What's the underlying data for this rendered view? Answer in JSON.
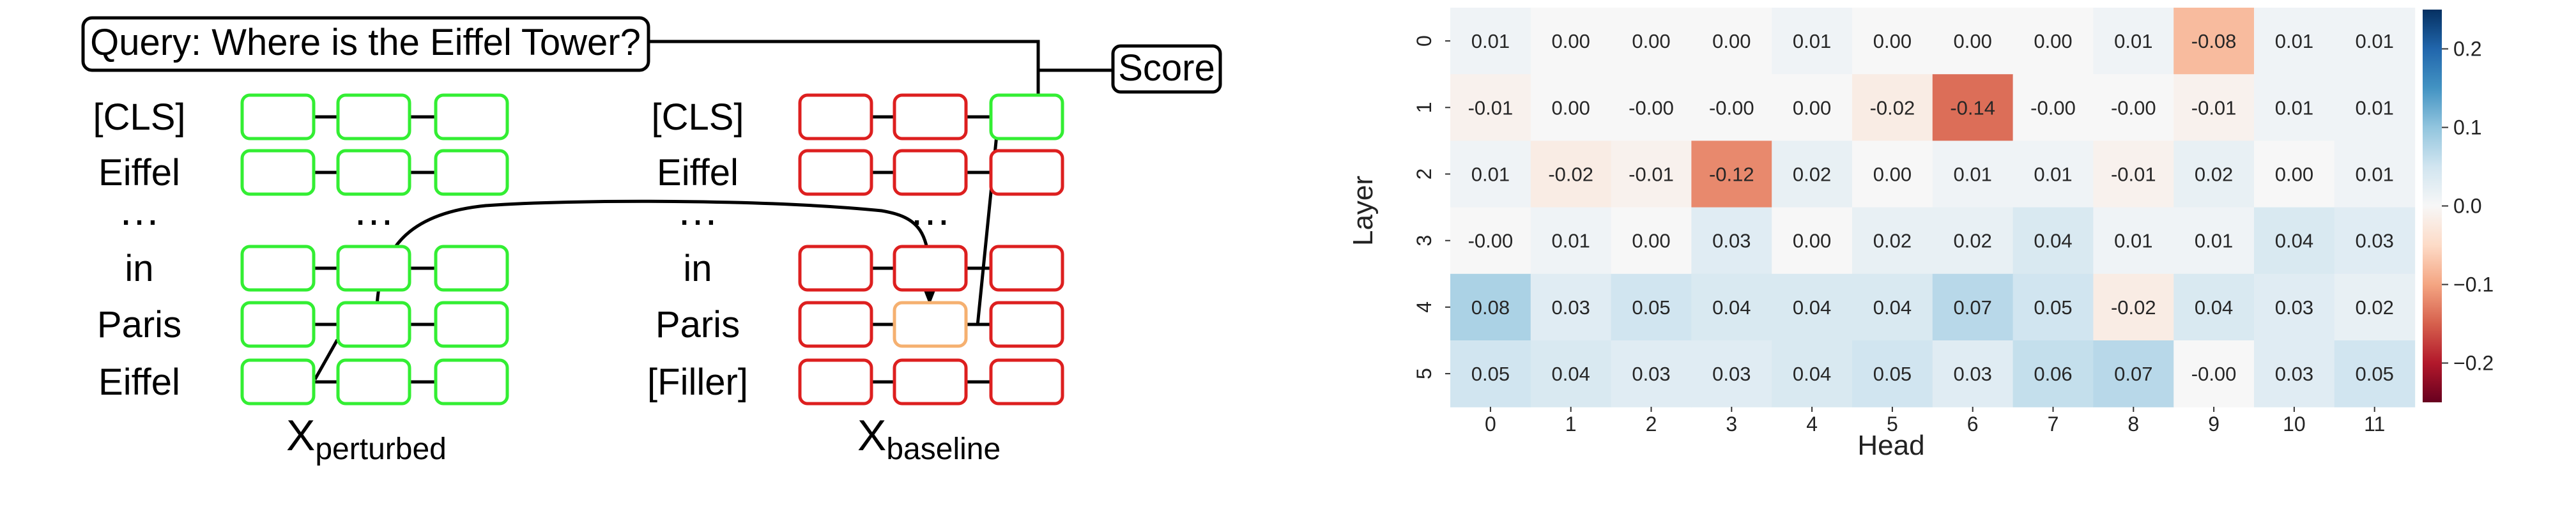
{
  "diagram": {
    "query": "Query: Where is the Eiffel Tower?",
    "score": "Score",
    "perturbed": {
      "labels": [
        "[CLS]",
        "Eiffel",
        "…",
        "in",
        "Paris",
        "Eiffel"
      ],
      "caption_main": "X",
      "caption_sub": "perturbed"
    },
    "baseline": {
      "labels": [
        "[CLS]",
        "Eiffel",
        "…",
        "in",
        "Paris",
        "[Filler]"
      ],
      "caption_main": "X",
      "caption_sub": "baseline"
    },
    "ellipsis": "…",
    "colors": {
      "green": "#33ee33",
      "red": "#dd1f1f",
      "orange": "#f5b070",
      "line": "#000000"
    }
  },
  "chart_data": {
    "type": "heatmap",
    "xlabel": "Head",
    "ylabel": "Layer",
    "x": [
      "0",
      "1",
      "2",
      "3",
      "4",
      "5",
      "6",
      "7",
      "8",
      "9",
      "10",
      "11"
    ],
    "y": [
      "0",
      "1",
      "2",
      "3",
      "4",
      "5"
    ],
    "values": [
      [
        "0.01",
        "0.00",
        "0.00",
        "0.00",
        "0.01",
        "0.00",
        "0.00",
        "0.00",
        "0.01",
        "-0.08",
        "0.01",
        "0.01"
      ],
      [
        "-0.01",
        "0.00",
        "-0.00",
        "-0.00",
        "0.00",
        "-0.02",
        "-0.14",
        "-0.00",
        "-0.00",
        "-0.01",
        "0.01",
        "0.01"
      ],
      [
        "0.01",
        "-0.02",
        "-0.01",
        "-0.12",
        "0.02",
        "0.00",
        "0.01",
        "0.01",
        "-0.01",
        "0.02",
        "0.00",
        "0.01"
      ],
      [
        "-0.00",
        "0.01",
        "0.00",
        "0.03",
        "0.00",
        "0.02",
        "0.02",
        "0.04",
        "0.01",
        "0.01",
        "0.04",
        "0.03"
      ],
      [
        "0.08",
        "0.03",
        "0.05",
        "0.04",
        "0.04",
        "0.04",
        "0.07",
        "0.05",
        "-0.02",
        "0.04",
        "0.03",
        "0.02"
      ],
      [
        "0.05",
        "0.04",
        "0.03",
        "0.03",
        "0.04",
        "0.05",
        "0.03",
        "0.06",
        "0.07",
        "-0.00",
        "0.03",
        "0.05"
      ]
    ],
    "colorbar": {
      "range": [
        -0.25,
        0.25
      ],
      "ticks": [
        "0.2",
        "0.1",
        "0.0",
        "−0.1",
        "−0.2"
      ],
      "colormap": "RdBu"
    }
  }
}
